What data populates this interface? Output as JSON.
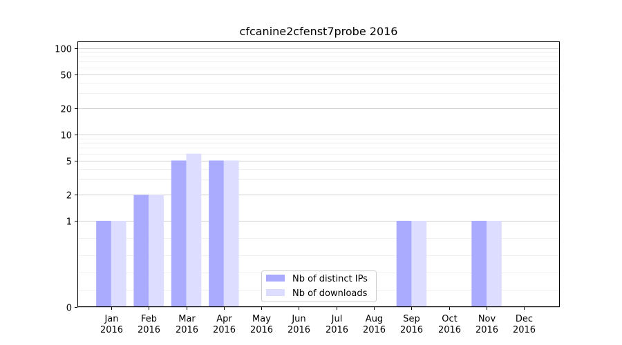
{
  "chart_data": {
    "type": "bar",
    "title": "cfcanine2cfenst7probe 2016",
    "xlabel": "",
    "ylabel": "",
    "yscale": "symlog",
    "ylim": [
      0,
      120
    ],
    "yticks": [
      0,
      1,
      2,
      5,
      10,
      20,
      50,
      100
    ],
    "ytick_labels": [
      "0",
      "1",
      "2",
      "5",
      "10",
      "20",
      "50",
      "100"
    ],
    "categories": [
      {
        "month": "Jan",
        "year": "2016"
      },
      {
        "month": "Feb",
        "year": "2016"
      },
      {
        "month": "Mar",
        "year": "2016"
      },
      {
        "month": "Apr",
        "year": "2016"
      },
      {
        "month": "May",
        "year": "2016"
      },
      {
        "month": "Jun",
        "year": "2016"
      },
      {
        "month": "Jul",
        "year": "2016"
      },
      {
        "month": "Aug",
        "year": "2016"
      },
      {
        "month": "Sep",
        "year": "2016"
      },
      {
        "month": "Oct",
        "year": "2016"
      },
      {
        "month": "Nov",
        "year": "2016"
      },
      {
        "month": "Dec",
        "year": "2016"
      }
    ],
    "series": [
      {
        "name": "Nb of distinct IPs",
        "color": "#aaaaff",
        "values": [
          1,
          2,
          5,
          5,
          0,
          0,
          0,
          0,
          1,
          0,
          1,
          0
        ]
      },
      {
        "name": "Nb of downloads",
        "color": "#ddddff",
        "values": [
          1,
          2,
          6,
          5,
          0,
          0,
          0,
          0,
          1,
          0,
          1,
          0
        ]
      }
    ],
    "grid": true,
    "legend_position": "lower-center"
  }
}
